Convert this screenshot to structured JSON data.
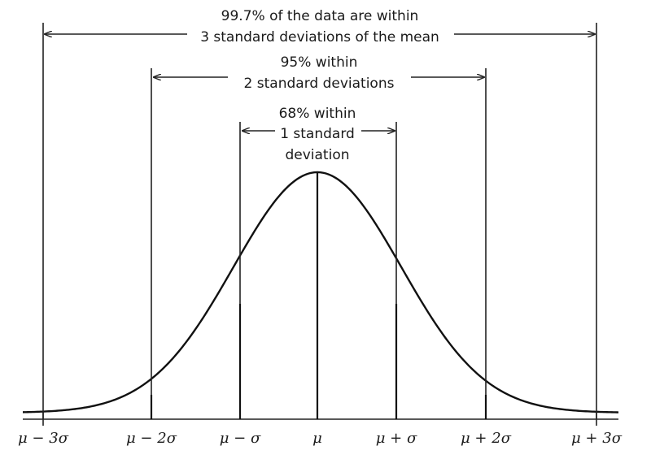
{
  "diagram": {
    "bands": [
      {
        "line1": "99.7% of the data are within",
        "line2": "3 standard deviations of the mean"
      },
      {
        "line1": "95% within",
        "line2": "2 standard deviations"
      },
      {
        "line1": "68% within",
        "line2": "1 standard",
        "line3": "deviation"
      }
    ],
    "tick_labels": [
      "μ − 3σ",
      "μ − 2σ",
      "μ − σ",
      "μ",
      "μ + σ",
      "μ + 2σ",
      "μ + 3σ"
    ]
  }
}
